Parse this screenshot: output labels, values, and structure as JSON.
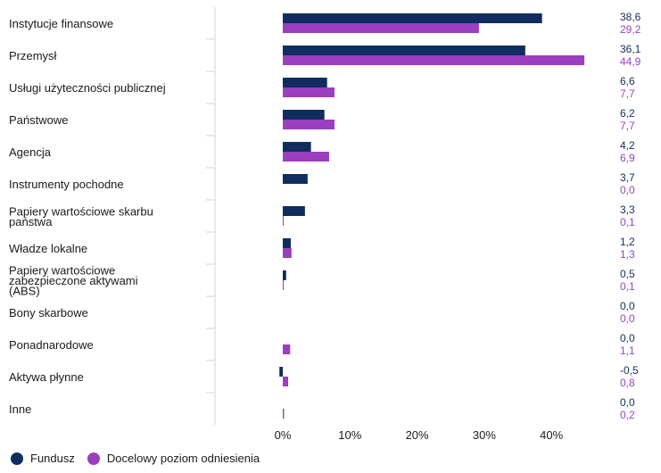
{
  "chart_data": {
    "type": "bar",
    "orientation": "horizontal",
    "categories": [
      [
        "Instytucje finansowe"
      ],
      [
        "Przemysł"
      ],
      [
        "Usługi użyteczności publicznej"
      ],
      [
        "Państwowe"
      ],
      [
        "Agencja"
      ],
      [
        "Instrumenty pochodne"
      ],
      [
        "Papiery wartościowe skarbu",
        "państwa"
      ],
      [
        "Władze lokalne"
      ],
      [
        "Papiery wartościowe",
        "zabezpieczone aktywami",
        "(ABS)"
      ],
      [
        "Bony skarbowe"
      ],
      [
        "Ponadnarodowe"
      ],
      [
        "Aktywa płynne"
      ],
      [
        "Inne"
      ]
    ],
    "series": [
      {
        "name": "Fundusz",
        "color": "#0f2d5f",
        "values": [
          38.6,
          36.1,
          6.6,
          6.2,
          4.2,
          3.7,
          3.3,
          1.2,
          0.5,
          0.0,
          0.0,
          -0.5,
          0.0
        ],
        "labels": [
          "38,6",
          "36,1",
          "6,6",
          "6,2",
          "4,2",
          "3,7",
          "3,3",
          "1,2",
          "0,5",
          "0,0",
          "0,0",
          "-0,5",
          "0,0"
        ]
      },
      {
        "name": "Docelowy poziom odniesienia",
        "color": "#9b3fc0",
        "values": [
          29.2,
          44.9,
          7.7,
          7.7,
          6.9,
          0.0,
          0.1,
          1.3,
          0.1,
          0.0,
          1.1,
          0.8,
          0.2
        ],
        "labels": [
          "29,2",
          "44,9",
          "7,7",
          "7,7",
          "6,9",
          "0,0",
          "0,1",
          "1,3",
          "0,1",
          "0,0",
          "1,1",
          "0,8",
          "0,2"
        ]
      }
    ],
    "xticks": [
      "0%",
      "10%",
      "20%",
      "30%",
      "40%"
    ],
    "xtick_values": [
      0,
      10,
      20,
      30,
      40
    ],
    "xlim": [
      -10,
      50
    ],
    "legend_position": "bottom-left",
    "grid": false
  }
}
